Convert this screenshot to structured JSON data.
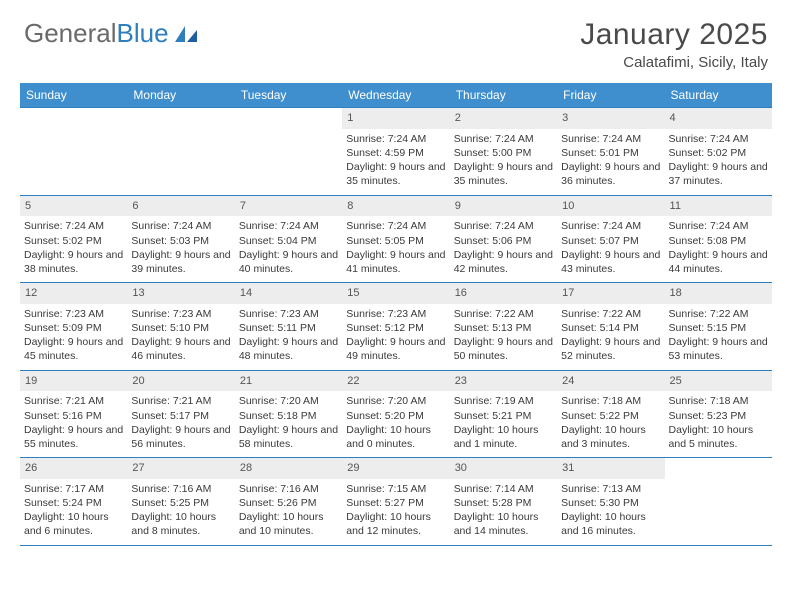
{
  "brand": {
    "part1": "General",
    "part2": "Blue"
  },
  "title": "January 2025",
  "location": "Calatafimi, Sicily, Italy",
  "colors": {
    "header_bg": "#3f8fcf",
    "border": "#2f7fbf",
    "daynum_bg": "#ededed",
    "text": "#3a3a3a",
    "logo_gray": "#6a6a6a",
    "logo_blue": "#2f7fbf"
  },
  "weekdays": [
    "Sunday",
    "Monday",
    "Tuesday",
    "Wednesday",
    "Thursday",
    "Friday",
    "Saturday"
  ],
  "weeks": [
    [
      {
        "n": "",
        "empty": true
      },
      {
        "n": "",
        "empty": true
      },
      {
        "n": "",
        "empty": true
      },
      {
        "n": "1",
        "sr": "7:24 AM",
        "ss": "4:59 PM",
        "dl": "9 hours and 35 minutes."
      },
      {
        "n": "2",
        "sr": "7:24 AM",
        "ss": "5:00 PM",
        "dl": "9 hours and 35 minutes."
      },
      {
        "n": "3",
        "sr": "7:24 AM",
        "ss": "5:01 PM",
        "dl": "9 hours and 36 minutes."
      },
      {
        "n": "4",
        "sr": "7:24 AM",
        "ss": "5:02 PM",
        "dl": "9 hours and 37 minutes."
      }
    ],
    [
      {
        "n": "5",
        "sr": "7:24 AM",
        "ss": "5:02 PM",
        "dl": "9 hours and 38 minutes."
      },
      {
        "n": "6",
        "sr": "7:24 AM",
        "ss": "5:03 PM",
        "dl": "9 hours and 39 minutes."
      },
      {
        "n": "7",
        "sr": "7:24 AM",
        "ss": "5:04 PM",
        "dl": "9 hours and 40 minutes."
      },
      {
        "n": "8",
        "sr": "7:24 AM",
        "ss": "5:05 PM",
        "dl": "9 hours and 41 minutes."
      },
      {
        "n": "9",
        "sr": "7:24 AM",
        "ss": "5:06 PM",
        "dl": "9 hours and 42 minutes."
      },
      {
        "n": "10",
        "sr": "7:24 AM",
        "ss": "5:07 PM",
        "dl": "9 hours and 43 minutes."
      },
      {
        "n": "11",
        "sr": "7:24 AM",
        "ss": "5:08 PM",
        "dl": "9 hours and 44 minutes."
      }
    ],
    [
      {
        "n": "12",
        "sr": "7:23 AM",
        "ss": "5:09 PM",
        "dl": "9 hours and 45 minutes."
      },
      {
        "n": "13",
        "sr": "7:23 AM",
        "ss": "5:10 PM",
        "dl": "9 hours and 46 minutes."
      },
      {
        "n": "14",
        "sr": "7:23 AM",
        "ss": "5:11 PM",
        "dl": "9 hours and 48 minutes."
      },
      {
        "n": "15",
        "sr": "7:23 AM",
        "ss": "5:12 PM",
        "dl": "9 hours and 49 minutes."
      },
      {
        "n": "16",
        "sr": "7:22 AM",
        "ss": "5:13 PM",
        "dl": "9 hours and 50 minutes."
      },
      {
        "n": "17",
        "sr": "7:22 AM",
        "ss": "5:14 PM",
        "dl": "9 hours and 52 minutes."
      },
      {
        "n": "18",
        "sr": "7:22 AM",
        "ss": "5:15 PM",
        "dl": "9 hours and 53 minutes."
      }
    ],
    [
      {
        "n": "19",
        "sr": "7:21 AM",
        "ss": "5:16 PM",
        "dl": "9 hours and 55 minutes."
      },
      {
        "n": "20",
        "sr": "7:21 AM",
        "ss": "5:17 PM",
        "dl": "9 hours and 56 minutes."
      },
      {
        "n": "21",
        "sr": "7:20 AM",
        "ss": "5:18 PM",
        "dl": "9 hours and 58 minutes."
      },
      {
        "n": "22",
        "sr": "7:20 AM",
        "ss": "5:20 PM",
        "dl": "10 hours and 0 minutes."
      },
      {
        "n": "23",
        "sr": "7:19 AM",
        "ss": "5:21 PM",
        "dl": "10 hours and 1 minute."
      },
      {
        "n": "24",
        "sr": "7:18 AM",
        "ss": "5:22 PM",
        "dl": "10 hours and 3 minutes."
      },
      {
        "n": "25",
        "sr": "7:18 AM",
        "ss": "5:23 PM",
        "dl": "10 hours and 5 minutes."
      }
    ],
    [
      {
        "n": "26",
        "sr": "7:17 AM",
        "ss": "5:24 PM",
        "dl": "10 hours and 6 minutes."
      },
      {
        "n": "27",
        "sr": "7:16 AM",
        "ss": "5:25 PM",
        "dl": "10 hours and 8 minutes."
      },
      {
        "n": "28",
        "sr": "7:16 AM",
        "ss": "5:26 PM",
        "dl": "10 hours and 10 minutes."
      },
      {
        "n": "29",
        "sr": "7:15 AM",
        "ss": "5:27 PM",
        "dl": "10 hours and 12 minutes."
      },
      {
        "n": "30",
        "sr": "7:14 AM",
        "ss": "5:28 PM",
        "dl": "10 hours and 14 minutes."
      },
      {
        "n": "31",
        "sr": "7:13 AM",
        "ss": "5:30 PM",
        "dl": "10 hours and 16 minutes."
      },
      {
        "n": "",
        "empty": true
      }
    ]
  ],
  "labels": {
    "sunrise": "Sunrise:",
    "sunset": "Sunset:",
    "daylight": "Daylight:"
  }
}
